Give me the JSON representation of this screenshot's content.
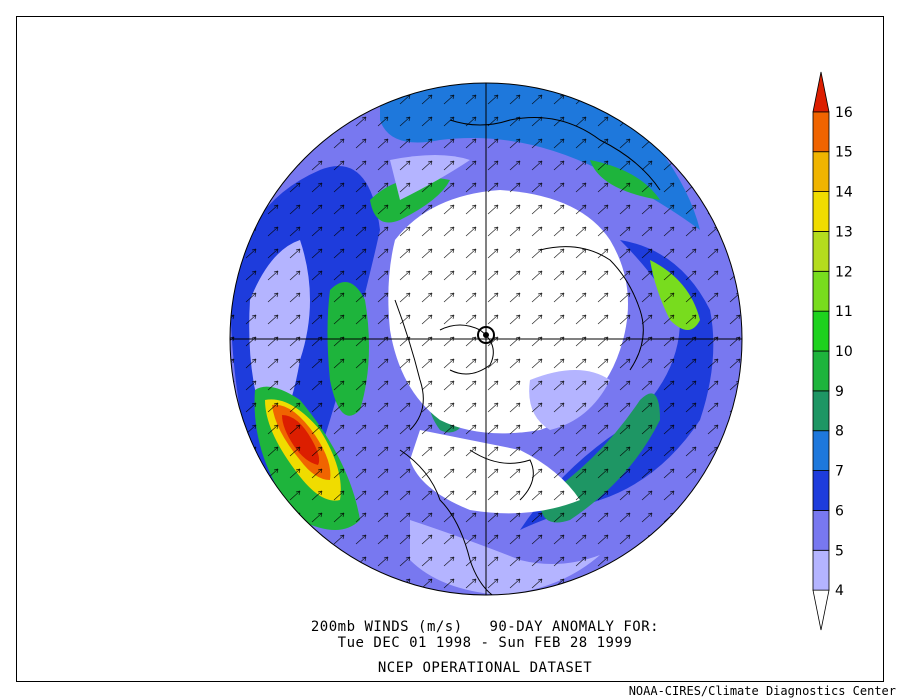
{
  "map": {
    "title_line1": "200mb WINDS (m/s)   90-DAY ANOMALY FOR:",
    "title_line2": "Tue DEC 01 1998 - Sun FEB 28 1999",
    "title_line3": "NCEP OPERATIONAL DATASET",
    "credit": "NOAA-CIRES/Climate Diagnostics Center",
    "projection": "north-polar-stereographic",
    "variable": "wind-speed-anomaly",
    "units": "m/s"
  },
  "colorbar": {
    "levels": [
      "4",
      "5",
      "6",
      "7",
      "8",
      "9",
      "10",
      "11",
      "12",
      "13",
      "14",
      "15",
      "16"
    ],
    "colors": [
      "#ffffff",
      "#b4b4ff",
      "#7878f0",
      "#1e3cdc",
      "#1e78dc",
      "#1e9664",
      "#1eb43c",
      "#1ed21e",
      "#78dc1e",
      "#b4dc1e",
      "#f0dc00",
      "#f0b400",
      "#f06400",
      "#dc1e00"
    ]
  }
}
